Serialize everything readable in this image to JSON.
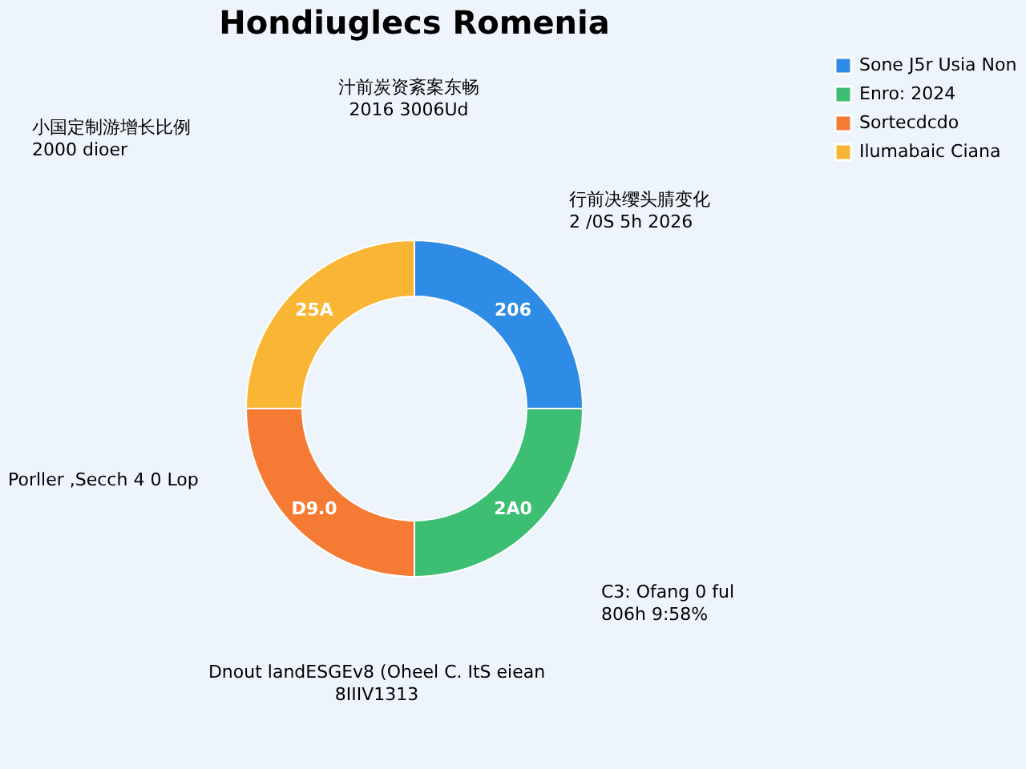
{
  "chart_data": {
    "type": "donut",
    "title": "Hondiuglecs Romenia",
    "categories": [
      "Sone J5r Usia Non",
      "Enro: 2024",
      "Sortecdcdo",
      "Ilumabaic Ciana"
    ],
    "values": [
      25,
      25,
      25,
      25
    ],
    "colors": [
      "#2f8ce6",
      "#3cbf73",
      "#f57b34",
      "#f8b634"
    ],
    "legend": "right",
    "annotations": [
      "汁前炭资紊案东畅\n2016 3006Ud",
      "小国定制游增长比例\n2000 dioer",
      "行前决缨头腈变化\n2 /0S 5h 2026",
      "Porller ,Secch 4 0 Lop",
      "C3: Ofang 0 ful\n806h 9:58%",
      "Dnout landESGEv8 (Oheel C. ItS eiean\n8IIIV1313",
      "206",
      "2A0",
      "D9.0",
      "25A"
    ]
  }
}
